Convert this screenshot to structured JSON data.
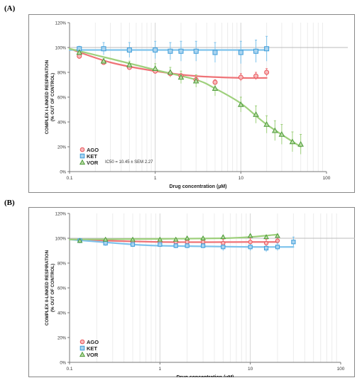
{
  "panels": [
    {
      "label": "(A)"
    },
    {
      "label": "(B)"
    }
  ],
  "colors": {
    "AGO": "#e8555a",
    "KET": "#3b9bd8",
    "VOR": "#4c9a38",
    "AGO_line": "#ef7377",
    "KET_line": "#7ec3ec",
    "VOR_line": "#9ed07c"
  },
  "chart_data": [
    {
      "type": "scatter",
      "xlabel": "Drug concentration (µM)",
      "ylabel": [
        "COMPLEX I-LINKED RESPIRATION",
        "(% OUT OF CONTROL)"
      ],
      "xscale": "log",
      "xlim": [
        0.1,
        100
      ],
      "ylim": [
        0,
        120
      ],
      "x_ticks": [
        "0.1",
        "1",
        "10",
        "100"
      ],
      "y_ticks": [
        "0%",
        "20%",
        "40%",
        "60%",
        "80%",
        "100%",
        "120%"
      ],
      "grid": "vertical",
      "legend": "bottom-left",
      "annotation": "IC50 = 10.45 ± SEM 2.27",
      "series": [
        {
          "name": "AGO",
          "marker": "circle",
          "x": [
            0.13,
            0.25,
            0.5,
            1,
            1.5,
            2,
            3,
            5,
            10,
            15,
            20
          ],
          "y": [
            93,
            88,
            84,
            81,
            79,
            77,
            74,
            72,
            76,
            77,
            80
          ],
          "err": [
            2,
            2,
            2,
            2,
            2,
            2,
            2,
            2,
            3,
            3,
            3
          ],
          "fit_x": [
            0.1,
            0.3,
            1,
            3,
            10,
            20
          ],
          "fit_y": [
            99,
            88,
            81,
            77,
            75.5,
            75.5
          ]
        },
        {
          "name": "KET",
          "marker": "square",
          "x": [
            0.13,
            0.25,
            0.5,
            1,
            1.5,
            2,
            3,
            5,
            10,
            15,
            20
          ],
          "y": [
            99,
            99,
            98,
            98,
            97,
            97,
            97,
            96,
            96,
            97,
            99
          ],
          "err": [
            2,
            5,
            6,
            7,
            7,
            8,
            8,
            8,
            9,
            9,
            10
          ],
          "fit_x": [
            0.1,
            0.3,
            1,
            3,
            10,
            20
          ],
          "fit_y": [
            98,
            98,
            98,
            98,
            98,
            98
          ]
        },
        {
          "name": "VOR",
          "marker": "triangle",
          "x": [
            0.13,
            0.25,
            0.5,
            1,
            1.5,
            2,
            3,
            5,
            10,
            15,
            20,
            25,
            30,
            40,
            50
          ],
          "y": [
            96,
            89,
            86,
            83,
            80,
            76,
            73,
            67,
            54,
            46,
            38,
            33,
            30,
            24,
            22
          ],
          "err": [
            2,
            2,
            3,
            4,
            4,
            5,
            5,
            6,
            6,
            7,
            7,
            8,
            8,
            8,
            8
          ],
          "fit_x": [
            0.1,
            0.3,
            1,
            3,
            5,
            10,
            20,
            50
          ],
          "fit_y": [
            99,
            91,
            82,
            74,
            67,
            55,
            38,
            20
          ]
        }
      ],
      "legend_entries": [
        "AGO",
        "KET",
        "VOR"
      ]
    },
    {
      "type": "scatter",
      "xlabel": "Drug concentration (µM)",
      "ylabel": [
        "COMPLEX II-LINKED RESPIRATION",
        "(% OUT OF CONTROL)"
      ],
      "xscale": "log",
      "xlim": [
        0.1,
        100
      ],
      "ylim": [
        0,
        120
      ],
      "x_ticks": [
        "0.1",
        "1",
        "10",
        "100"
      ],
      "y_ticks": [
        "0%",
        "20%",
        "40%",
        "60%",
        "80%",
        "100%",
        "120%"
      ],
      "grid": "vertical",
      "legend": "bottom-left",
      "series": [
        {
          "name": "AGO",
          "marker": "circle",
          "x": [
            0.13,
            0.25,
            0.5,
            1,
            1.5,
            2,
            3,
            5,
            10,
            15,
            20
          ],
          "y": [
            98,
            97,
            97,
            97,
            97,
            97,
            97,
            96,
            97,
            96,
            98
          ],
          "err": [
            2,
            2,
            2,
            2,
            3,
            3,
            3,
            3,
            3,
            3,
            3
          ],
          "fit_x": [
            0.1,
            1,
            10,
            20
          ],
          "fit_y": [
            99,
            97,
            97,
            97
          ]
        },
        {
          "name": "KET",
          "marker": "square",
          "x": [
            0.13,
            0.25,
            0.5,
            1,
            1.5,
            2,
            3,
            5,
            10,
            15,
            20,
            30
          ],
          "y": [
            98,
            96,
            95,
            95,
            94,
            94,
            94,
            93,
            93,
            92,
            93,
            97
          ],
          "err": [
            2,
            2,
            2,
            2,
            2,
            2,
            2,
            3,
            3,
            3,
            3,
            4
          ],
          "fit_x": [
            0.1,
            0.5,
            1,
            3,
            10,
            30
          ],
          "fit_y": [
            99,
            95,
            94,
            93.5,
            93,
            93
          ]
        },
        {
          "name": "VOR",
          "marker": "triangle",
          "x": [
            0.13,
            0.25,
            0.5,
            1,
            1.5,
            2,
            3,
            5,
            10,
            15,
            20
          ],
          "y": [
            98,
            99,
            99,
            99,
            99,
            100,
            100,
            101,
            102,
            101,
            102
          ],
          "err": [
            1,
            1,
            1,
            1,
            1,
            1,
            1,
            1,
            1,
            1,
            1
          ],
          "fit_x": [
            0.1,
            1,
            5,
            10,
            20
          ],
          "fit_y": [
            99,
            99.5,
            100,
            101,
            103
          ]
        }
      ],
      "legend_entries": [
        "AGO",
        "KET",
        "VOR"
      ]
    }
  ]
}
